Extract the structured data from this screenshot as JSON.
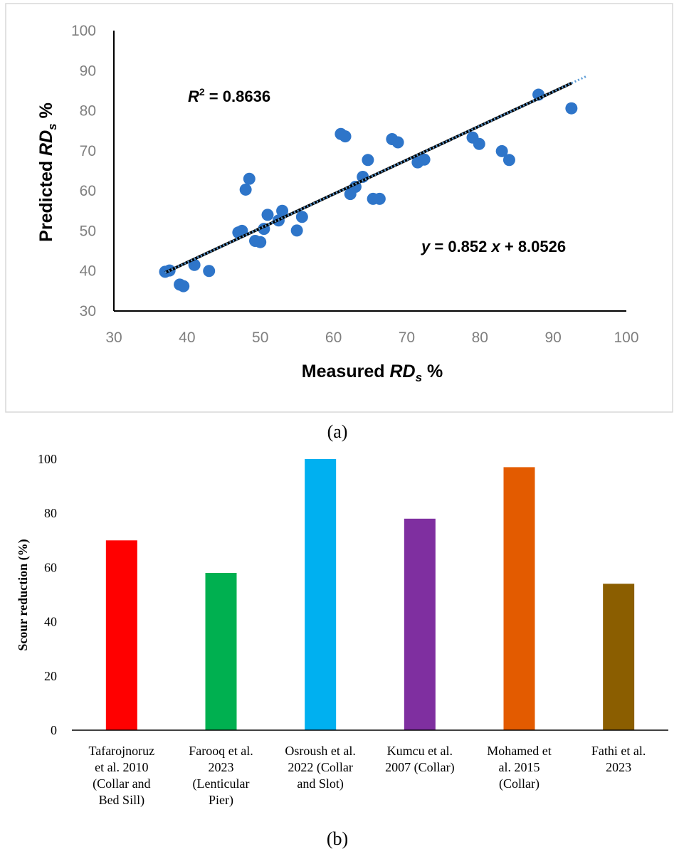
{
  "panel_a": {
    "label": "(a)",
    "r2_prefix": "R",
    "r2_sup": "2",
    "r2_value": " = 0.8636",
    "eq_y": "y",
    "eq_mid": " = 0.852 ",
    "eq_x": "x",
    "eq_end": " + 8.0526",
    "xlabel_text": "Measured ",
    "xlabel_var": "RD",
    "xlabel_sub": "s",
    "xlabel_unit": " %",
    "ylabel_text": "Predicted ",
    "ylabel_var": "RD",
    "ylabel_sub": "s",
    "ylabel_unit": " %"
  },
  "panel_b": {
    "label": "(b)",
    "ylabel": "Scour reduction (%)"
  },
  "colors": {
    "points": "#2e75c9",
    "fit_black": "#000000",
    "trend_dotted": "#5b9bd5",
    "axis_tick_text": "#7f7f7f",
    "frame": "#d9d9d9"
  },
  "chart_data": [
    {
      "type": "scatter",
      "xlim": [
        30,
        100
      ],
      "ylim": [
        30,
        100
      ],
      "xticks": [
        30,
        40,
        50,
        60,
        70,
        80,
        90,
        100
      ],
      "yticks": [
        30,
        40,
        50,
        60,
        70,
        80,
        90,
        100
      ],
      "grid": false,
      "fit": {
        "slope": 0.852,
        "intercept": 8.0526,
        "x_range": [
          37,
          92.5
        ],
        "trend_to": 94.5
      },
      "points": [
        {
          "x": 37.0,
          "y": 39.8
        },
        {
          "x": 37.6,
          "y": 40.1
        },
        {
          "x": 39.0,
          "y": 36.6
        },
        {
          "x": 39.5,
          "y": 36.2
        },
        {
          "x": 41.0,
          "y": 41.5
        },
        {
          "x": 43.0,
          "y": 40.0
        },
        {
          "x": 47.0,
          "y": 49.6
        },
        {
          "x": 47.5,
          "y": 50.0
        },
        {
          "x": 48.0,
          "y": 60.3
        },
        {
          "x": 48.5,
          "y": 63.0
        },
        {
          "x": 49.3,
          "y": 47.5
        },
        {
          "x": 50.0,
          "y": 47.2
        },
        {
          "x": 50.5,
          "y": 50.5
        },
        {
          "x": 51.0,
          "y": 54.0
        },
        {
          "x": 52.5,
          "y": 52.6
        },
        {
          "x": 53.0,
          "y": 55.0
        },
        {
          "x": 55.0,
          "y": 50.1
        },
        {
          "x": 55.7,
          "y": 53.5
        },
        {
          "x": 61.0,
          "y": 74.2
        },
        {
          "x": 61.6,
          "y": 73.6
        },
        {
          "x": 62.3,
          "y": 59.2
        },
        {
          "x": 63.0,
          "y": 61.0
        },
        {
          "x": 64.0,
          "y": 63.5
        },
        {
          "x": 64.7,
          "y": 67.7
        },
        {
          "x": 65.4,
          "y": 58.0
        },
        {
          "x": 66.3,
          "y": 58.0
        },
        {
          "x": 68.0,
          "y": 72.9
        },
        {
          "x": 68.8,
          "y": 72.1
        },
        {
          "x": 71.5,
          "y": 67.1
        },
        {
          "x": 72.4,
          "y": 67.8
        },
        {
          "x": 79.0,
          "y": 73.3
        },
        {
          "x": 79.9,
          "y": 71.7
        },
        {
          "x": 83.0,
          "y": 69.9
        },
        {
          "x": 84.0,
          "y": 67.7
        },
        {
          "x": 88.0,
          "y": 84.0
        },
        {
          "x": 92.5,
          "y": 80.6
        }
      ]
    },
    {
      "type": "bar",
      "ylim": [
        0,
        100
      ],
      "yticks": [
        0,
        20,
        40,
        60,
        80,
        100
      ],
      "grid": false,
      "categories": [
        [
          "Tafarojnoruz",
          "et al. 2010",
          "(Collar and",
          "Bed Sill)"
        ],
        [
          "Farooq et al.",
          "2023",
          "(Lenticular",
          "Pier)"
        ],
        [
          "Osroush et al.",
          "2022 (Collar",
          "and Slot)"
        ],
        [
          "Kumcu et al.",
          "2007 (Collar)"
        ],
        [
          "Mohamed et",
          "al. 2015",
          "(Collar)"
        ],
        [
          "Fathi et al.",
          "2023"
        ]
      ],
      "values": [
        70,
        58,
        100,
        78,
        97,
        54
      ],
      "colors": [
        "#ff0000",
        "#00b050",
        "#00b0f0",
        "#7f2fa0",
        "#e35b00",
        "#8b5e00"
      ]
    }
  ]
}
